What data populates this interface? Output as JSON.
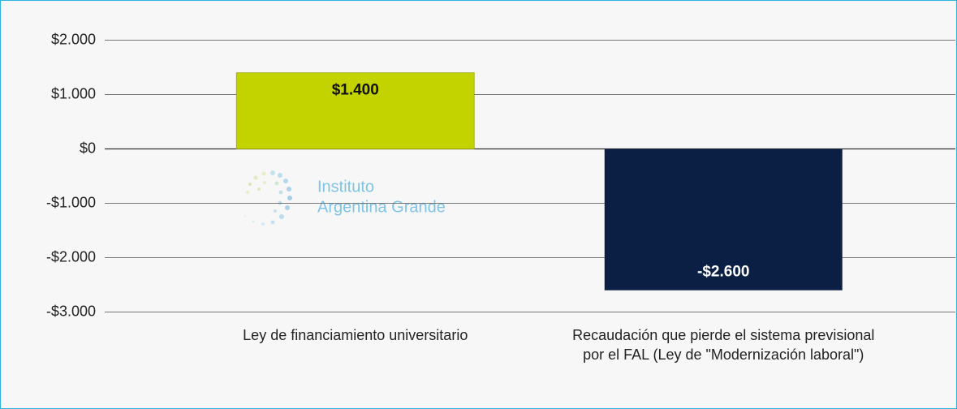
{
  "chart_data": {
    "type": "bar",
    "categories": [
      "Ley de financiamiento universitario",
      "Recaudación que pierde el sistema previsional por el FAL (Ley de \"Modernización laboral\")"
    ],
    "values": [
      1400,
      -2600
    ],
    "value_labels": [
      "$1.400",
      "-$2.600"
    ],
    "colors": [
      "#c3d300",
      "#0b1f45"
    ],
    "ylim": [
      -3000,
      2000
    ],
    "yticks": [
      {
        "value": 2000,
        "label": "$2.000"
      },
      {
        "value": 1000,
        "label": "$1.000"
      },
      {
        "value": 0,
        "label": "$0"
      },
      {
        "value": -1000,
        "label": "-$1.000"
      },
      {
        "value": -2000,
        "label": "-$2.000"
      },
      {
        "value": -3000,
        "label": "-$3.000"
      }
    ],
    "grid": true,
    "watermark": [
      "Instituto",
      "Argentina Grande"
    ]
  }
}
